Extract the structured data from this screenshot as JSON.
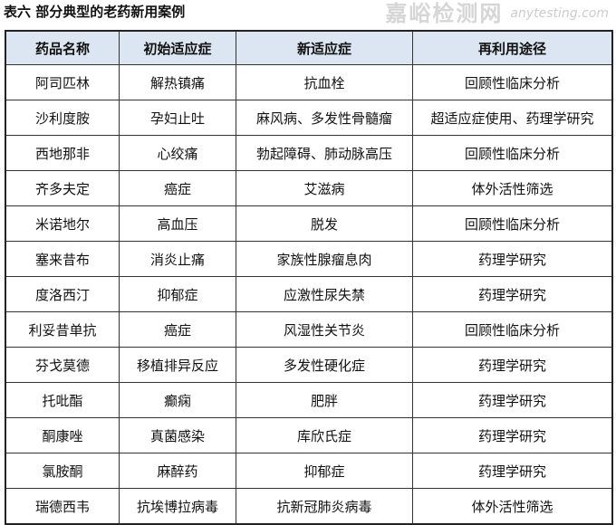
{
  "title": "表六 部分典型的老药新用案例",
  "headers": [
    "药品名称",
    "初始适应症",
    "新适应症",
    "再利用途径"
  ],
  "rows": [
    [
      "阿司匹林",
      "解热镇痛",
      "抗血栓",
      "回顾性临床分析"
    ],
    [
      "沙利度胺",
      "孕妇止吐",
      "麻风病、多发性骨髓瘤",
      "超适应症使用、药理学研究"
    ],
    [
      "西地那非",
      "心绞痛",
      "勃起障碍、肺动脉高压",
      "回顾性临床分析"
    ],
    [
      "齐多夫定",
      "癌症",
      "艾滋病",
      "体外活性筛选"
    ],
    [
      "米诺地尔",
      "高血压",
      "脱发",
      "回顾性临床分析"
    ],
    [
      "塞来昔布",
      "消炎止痛",
      "家族性腺瘤息肉",
      "药理学研究"
    ],
    [
      "度洛西汀",
      "抑郁症",
      "应激性尿失禁",
      "药理学研究"
    ],
    [
      "利妥昔单抗",
      "癌症",
      "风湿性关节炎",
      "回顾性临床分析"
    ],
    [
      "芬戈莫德",
      "移植排异反应",
      "多发性硬化症",
      "药理学研究"
    ],
    [
      "托吡酯",
      "癫痫",
      "肥胖",
      "药理学研究"
    ],
    [
      "酮康唑",
      "真菌感染",
      "库欣氏症",
      "药理学研究"
    ],
    [
      "氯胺酮",
      "麻醉药",
      "抑郁症",
      "药理学研究"
    ],
    [
      "瑞德西韦",
      "抗埃博拉病毒",
      "抗新冠肺炎病毒",
      "体外活性筛选"
    ]
  ],
  "watermark": {
    "text": "嘉峪检测网",
    "url": "anytesting.com"
  },
  "colors": {
    "header_bg": "#dce6f2"
  }
}
